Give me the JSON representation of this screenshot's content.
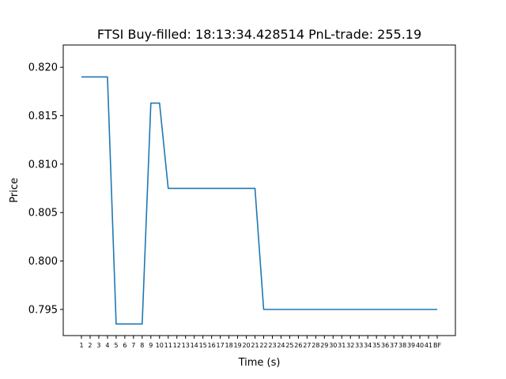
{
  "chart_data": {
    "type": "line",
    "title": "FTSI  Buy-filled:  18:13:34.428514  PnL-trade:  255.19",
    "xlabel": "Time (s)",
    "ylabel": "Price",
    "ylim": [
      0.7923,
      0.8223
    ],
    "grid": false,
    "yticks": [
      "0.795",
      "0.800",
      "0.805",
      "0.810",
      "0.815",
      "0.820"
    ],
    "x": [
      "1",
      "2",
      "3",
      "4",
      "5",
      "6",
      "7",
      "8",
      "9",
      "10",
      "11",
      "12",
      "13",
      "14",
      "15",
      "16",
      "17",
      "18",
      "19",
      "20",
      "21",
      "22",
      "23",
      "24",
      "25",
      "26",
      "27",
      "28",
      "29",
      "30",
      "31",
      "32",
      "33",
      "34",
      "35",
      "36",
      "37",
      "38",
      "39",
      "40",
      "41",
      "BF"
    ],
    "series": [
      {
        "color": "#1f77b4",
        "values": [
          0.819,
          0.819,
          0.819,
          0.819,
          0.7935,
          0.7935,
          0.7935,
          0.7935,
          0.8163,
          0.8163,
          0.8075,
          0.8075,
          0.8075,
          0.8075,
          0.8075,
          0.8075,
          0.8075,
          0.8075,
          0.8075,
          0.8075,
          0.8075,
          0.795,
          0.795,
          0.795,
          0.795,
          0.795,
          0.795,
          0.795,
          0.795,
          0.795,
          0.795,
          0.795,
          0.795,
          0.795,
          0.795,
          0.795,
          0.795,
          0.795,
          0.795,
          0.795,
          0.795,
          0.795
        ]
      }
    ]
  }
}
